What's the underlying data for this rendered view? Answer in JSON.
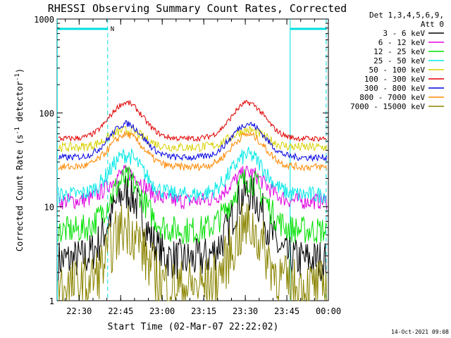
{
  "chart_data": {
    "type": "line",
    "title": "RHESSI Observing Summary Count Rates, Corrected",
    "ylabel_main": "Corrected Count Rate (s",
    "ylabel_sup1": "-1",
    "ylabel_mid": " detector",
    "ylabel_sup2": "-1",
    "ylabel_end": ")",
    "xlabel": "Start Time (02-Mar-07 22:22:02)",
    "timestamp": "14-Oct-2021 09:08",
    "y_scale": "log",
    "ylim": [
      1,
      1000
    ],
    "xlim_minutes": [
      22.03,
      120.0
    ],
    "grid": false,
    "x_ticks": [
      {
        "label": "22:30",
        "minute": 30
      },
      {
        "label": "22:45",
        "minute": 45
      },
      {
        "label": "23:00",
        "minute": 60
      },
      {
        "label": "23:15",
        "minute": 75
      },
      {
        "label": "23:30",
        "minute": 90
      },
      {
        "label": "23:45",
        "minute": 105
      },
      {
        "label": "00:00",
        "minute": 120
      }
    ],
    "y_ticks": [
      {
        "label": "1",
        "value": 1
      },
      {
        "label": "10",
        "value": 10
      },
      {
        "label": "100",
        "value": 100
      },
      {
        "label": "1000",
        "value": 1000
      }
    ],
    "legend_header": [
      "Det 1,3,4,5,6,9,",
      "Att 0"
    ],
    "legend_position": "right",
    "flag_label": "N",
    "night_periods": [
      {
        "start": 22.1,
        "end": 40.3
      },
      {
        "start": 106.2,
        "end": 119.2
      }
    ],
    "night_color": "#00dede",
    "series": [
      {
        "name": "3 - 6 keV",
        "color": "#000000",
        "base": 3.0,
        "peak": 16,
        "noise": 0.45
      },
      {
        "name": "6 - 12 keV",
        "color": "#e000e0",
        "base": 12,
        "peak": 24,
        "noise": 0.18
      },
      {
        "name": "12 - 25 keV",
        "color": "#00e000",
        "base": 6,
        "peak": 21,
        "noise": 0.3
      },
      {
        "name": "25 - 50 keV",
        "color": "#00e8e8",
        "base": 14,
        "peak": 37,
        "noise": 0.18
      },
      {
        "name": "50 - 100 keV",
        "color": "#d8d000",
        "base": 44,
        "peak": 67,
        "noise": 0.1
      },
      {
        "name": "100 - 300 keV",
        "color": "#e00000",
        "base": 54,
        "peak": 130,
        "noise": 0.06
      },
      {
        "name": "300 - 800 keV",
        "color": "#0000e0",
        "base": 34,
        "peak": 78,
        "noise": 0.07
      },
      {
        "name": "800 - 7000 keV",
        "color": "#ff8800",
        "base": 27,
        "peak": 60,
        "noise": 0.08
      },
      {
        "name": "7000 - 15000 keV",
        "color": "#8a8400",
        "base": 1.6,
        "peak": 7,
        "noise": 0.6
      }
    ],
    "orbit_peak_minutes": [
      47,
      91
    ]
  }
}
